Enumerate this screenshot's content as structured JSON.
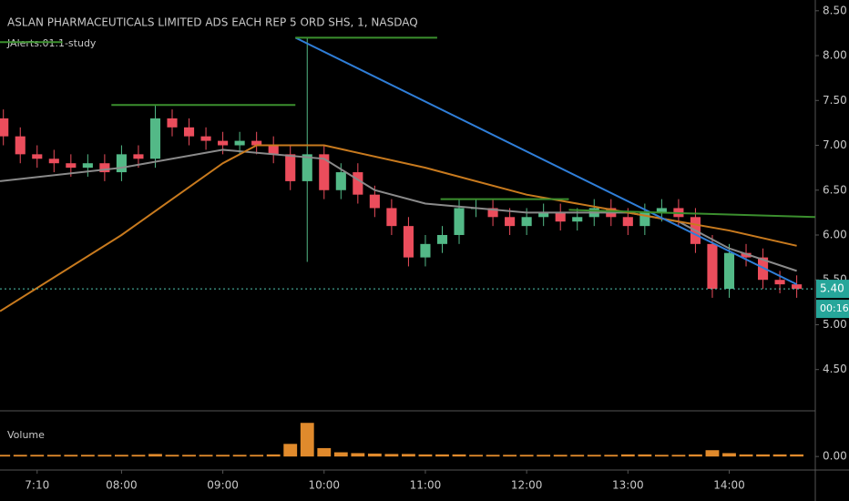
{
  "chart_data": [
    {
      "type": "candlestick",
      "title": "ASLAN PHARMACEUTICALS LIMITED ADS EACH REP 5 ORD SHS, 1, NASDAQ",
      "subtitle": "JAlerts.01.1-study",
      "x": [
        410,
        420,
        430,
        440,
        450,
        460,
        470,
        480,
        490,
        500,
        510,
        520,
        530,
        540,
        550,
        560,
        570,
        580,
        590,
        600,
        610,
        620,
        630,
        640,
        650,
        660,
        670,
        680,
        690,
        700,
        710,
        720,
        730,
        740,
        750,
        760,
        770,
        780,
        790,
        800,
        810,
        820,
        830,
        840,
        850,
        860,
        870,
        880
      ],
      "open": [
        7.3,
        7.1,
        6.9,
        6.85,
        6.8,
        6.75,
        6.8,
        6.7,
        6.9,
        6.85,
        7.3,
        7.2,
        7.1,
        7.05,
        7.0,
        7.05,
        7.0,
        6.9,
        6.6,
        6.9,
        6.5,
        6.7,
        6.45,
        6.3,
        6.1,
        5.75,
        5.9,
        6.0,
        6.3,
        6.3,
        6.2,
        6.1,
        6.2,
        6.25,
        6.15,
        6.2,
        6.3,
        6.2,
        6.1,
        6.25,
        6.3,
        6.2,
        5.9,
        5.4,
        5.8,
        5.75,
        5.5,
        5.45
      ],
      "high": [
        7.4,
        7.2,
        7.0,
        6.95,
        6.9,
        6.9,
        6.9,
        7.0,
        7.0,
        7.45,
        7.4,
        7.3,
        7.2,
        7.15,
        7.15,
        7.15,
        7.1,
        7.0,
        8.2,
        7.0,
        6.8,
        6.8,
        6.55,
        6.4,
        6.2,
        6.0,
        6.1,
        6.4,
        6.4,
        6.4,
        6.3,
        6.3,
        6.35,
        6.35,
        6.3,
        6.4,
        6.4,
        6.3,
        6.35,
        6.4,
        6.4,
        6.3,
        6.0,
        5.9,
        5.9,
        5.85,
        5.6,
        5.55
      ],
      "low": [
        7.0,
        6.8,
        6.75,
        6.7,
        6.65,
        6.65,
        6.6,
        6.6,
        6.75,
        6.75,
        7.1,
        7.0,
        6.95,
        6.9,
        6.9,
        6.9,
        6.8,
        6.5,
        5.7,
        6.4,
        6.4,
        6.35,
        6.2,
        6.0,
        5.65,
        5.65,
        5.8,
        5.9,
        6.2,
        6.1,
        6.0,
        6.0,
        6.1,
        6.05,
        6.05,
        6.1,
        6.1,
        6.0,
        6.0,
        6.15,
        6.1,
        5.8,
        5.3,
        5.3,
        5.65,
        5.4,
        5.35,
        5.3
      ],
      "close": [
        7.1,
        6.9,
        6.85,
        6.8,
        6.75,
        6.8,
        6.7,
        6.9,
        6.85,
        7.3,
        7.2,
        7.1,
        7.05,
        7.0,
        7.05,
        7.0,
        6.9,
        6.6,
        6.9,
        6.5,
        6.7,
        6.45,
        6.3,
        6.1,
        5.75,
        5.9,
        6.0,
        6.3,
        6.3,
        6.2,
        6.1,
        6.2,
        6.25,
        6.15,
        6.2,
        6.3,
        6.2,
        6.1,
        6.25,
        6.3,
        6.2,
        5.9,
        5.4,
        5.8,
        5.75,
        5.5,
        5.45,
        5.4
      ],
      "up_color": "#53b987",
      "down_color": "#eb4d5c",
      "series": [
        {
          "color": "#8a8a8a",
          "x": [
            408,
            480,
            540,
            600,
            630,
            660,
            720,
            780,
            810,
            840,
            880
          ],
          "values": [
            6.6,
            6.75,
            6.95,
            6.85,
            6.5,
            6.35,
            6.25,
            6.25,
            6.15,
            5.85,
            5.6
          ]
        },
        {
          "color": "#c87a1e",
          "x": [
            408,
            480,
            540,
            560,
            600,
            660,
            720,
            780,
            840,
            880
          ],
          "values": [
            5.15,
            6.0,
            6.8,
            7.0,
            7.0,
            6.75,
            6.45,
            6.25,
            6.05,
            5.88
          ]
        },
        {
          "color": "#2f7ed8",
          "x": [
            583,
            880
          ],
          "values": [
            8.2,
            5.45
          ]
        },
        {
          "color": "#3b8f2e",
          "x": [
            408,
            445
          ],
          "values": [
            8.15,
            8.15
          ]
        },
        {
          "color": "#3b8f2e",
          "x": [
            583,
            667
          ],
          "values": [
            8.2,
            8.2
          ]
        },
        {
          "color": "#3b8f2e",
          "x": [
            474,
            583
          ],
          "values": [
            7.45,
            7.45
          ]
        },
        {
          "color": "#3b8f2e",
          "x": [
            669,
            745
          ],
          "values": [
            6.4,
            6.4
          ]
        },
        {
          "color": "#3b8f2e",
          "x": [
            745,
            891
          ],
          "values": [
            6.28,
            6.2
          ]
        }
      ],
      "last_price": {
        "value": 5.4,
        "label": "5.40"
      },
      "countdown": "00:16",
      "xlim": [
        408,
        891
      ],
      "ylim": [
        4.05,
        8.62
      ],
      "xticks": [
        {
          "value": 430,
          "label": "7:10"
        },
        {
          "value": 480,
          "label": "08:00"
        },
        {
          "value": 540,
          "label": "09:00"
        },
        {
          "value": 600,
          "label": "10:00"
        },
        {
          "value": 660,
          "label": "11:00"
        },
        {
          "value": 720,
          "label": "12:00"
        },
        {
          "value": 780,
          "label": "13:00"
        },
        {
          "value": 840,
          "label": "14:00"
        }
      ],
      "yticks": [
        {
          "value": 4.5,
          "label": "4.50"
        },
        {
          "value": 5.0,
          "label": "5.00"
        },
        {
          "value": 5.5,
          "label": "5.50"
        },
        {
          "value": 6.0,
          "label": "6.00"
        },
        {
          "value": 6.5,
          "label": "6.50"
        },
        {
          "value": 7.0,
          "label": "7.00"
        },
        {
          "value": 7.5,
          "label": "7.50"
        },
        {
          "value": 8.0,
          "label": "8.00"
        },
        {
          "value": 8.5,
          "label": "8.50"
        }
      ]
    },
    {
      "type": "bar",
      "title": "Volume",
      "color": "#e08a2c",
      "x": [
        410,
        420,
        430,
        440,
        450,
        460,
        470,
        480,
        490,
        500,
        510,
        520,
        530,
        540,
        550,
        560,
        570,
        580,
        590,
        600,
        610,
        620,
        630,
        640,
        650,
        660,
        670,
        680,
        690,
        700,
        710,
        720,
        730,
        740,
        750,
        760,
        770,
        780,
        790,
        800,
        810,
        820,
        830,
        840,
        850,
        860,
        870,
        880
      ],
      "values": [
        0.04,
        0.04,
        0.04,
        0.04,
        0.04,
        0.04,
        0.04,
        0.04,
        0.04,
        0.06,
        0.04,
        0.04,
        0.04,
        0.04,
        0.04,
        0.04,
        0.05,
        0.3,
        0.8,
        0.2,
        0.1,
        0.08,
        0.07,
        0.06,
        0.06,
        0.05,
        0.05,
        0.05,
        0.04,
        0.04,
        0.04,
        0.04,
        0.04,
        0.04,
        0.04,
        0.04,
        0.04,
        0.05,
        0.05,
        0.04,
        0.04,
        0.05,
        0.15,
        0.08,
        0.05,
        0.05,
        0.05,
        0.05
      ],
      "xlim": [
        408,
        891
      ],
      "ylim": [
        -0.3,
        1.0
      ],
      "yticks": [
        {
          "value": 0,
          "label": "0.00"
        }
      ]
    }
  ]
}
